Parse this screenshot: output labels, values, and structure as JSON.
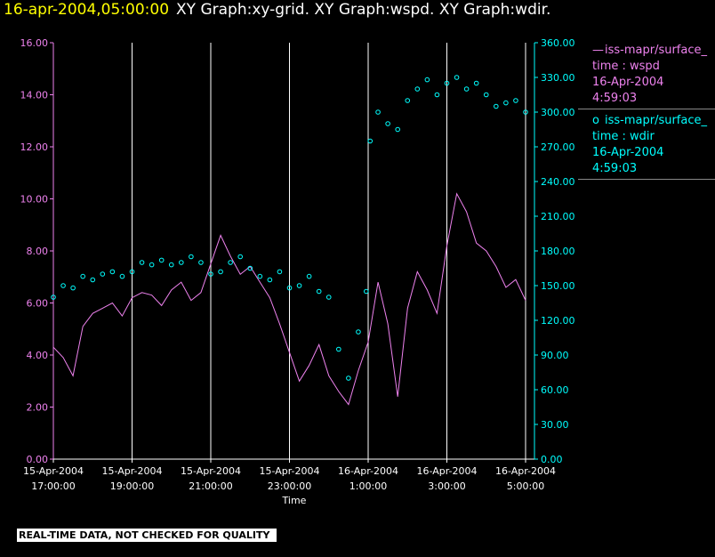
{
  "header": {
    "timestamp": "16-apr-2004,05:00:00",
    "graphs": "XY Graph:xy-grid.  XY Graph:wspd.  XY Graph:wdir."
  },
  "legend": [
    {
      "symbol": "—",
      "line1": "iss-mapr/surface_",
      "line2": "time : wspd",
      "line3": "16-Apr-2004",
      "line4": "4:59:03"
    },
    {
      "symbol": "o",
      "line1": "iss-mapr/surface_",
      "line2": "time : wdir",
      "line3": "16-Apr-2004",
      "line4": "4:59:03"
    }
  ],
  "notice": "REAL-TIME DATA, NOT CHECKED FOR QUALITY",
  "colors": {
    "wspd": "#ee82ee",
    "wdir": "#00ffff",
    "timestamp": "#ffff00",
    "grid": "#ffffff"
  },
  "chart_data": {
    "type": "line",
    "xlabel": "Time",
    "x_ticks": [
      {
        "hour": 0,
        "date": "15-Apr-2004",
        "time": "17:00:00"
      },
      {
        "hour": 2,
        "date": "15-Apr-2004",
        "time": "19:00:00"
      },
      {
        "hour": 4,
        "date": "15-Apr-2004",
        "time": "21:00:00"
      },
      {
        "hour": 6,
        "date": "15-Apr-2004",
        "time": "23:00:00"
      },
      {
        "hour": 8,
        "date": "16-Apr-2004",
        "time": "1:00:00"
      },
      {
        "hour": 10,
        "date": "16-Apr-2004",
        "time": "3:00:00"
      },
      {
        "hour": 12,
        "date": "16-Apr-2004",
        "time": "5:00:00"
      }
    ],
    "y_left": {
      "ylim": [
        0,
        16
      ],
      "ticks": [
        "0.00",
        "2.00",
        "4.00",
        "6.00",
        "8.00",
        "10.00",
        "12.00",
        "14.00",
        "16.00"
      ]
    },
    "y_right": {
      "ylim": [
        0,
        360
      ],
      "ticks": [
        "0.00",
        "30.00",
        "60.00",
        "90.00",
        "120.00",
        "150.00",
        "180.00",
        "210.00",
        "240.00",
        "270.00",
        "300.00",
        "330.00",
        "360.00"
      ]
    },
    "grid": "vertical at each x tick",
    "series": [
      {
        "style": "line",
        "axis": "left",
        "x": [
          0,
          0.25,
          0.5,
          0.75,
          1,
          1.25,
          1.5,
          1.75,
          2,
          2.25,
          2.5,
          2.75,
          3,
          3.25,
          3.5,
          3.75,
          4,
          4.25,
          4.5,
          4.75,
          5,
          5.25,
          5.5,
          5.75,
          6,
          6.25,
          6.5,
          6.75,
          7,
          7.25,
          7.5,
          7.75,
          8,
          8.25,
          8.5,
          8.75,
          9,
          9.25,
          9.5,
          9.75,
          10,
          10.25,
          10.5,
          10.75,
          11,
          11.25,
          11.5,
          11.75,
          12
        ],
        "values": [
          4.3,
          3.9,
          3.2,
          5.1,
          5.6,
          5.8,
          6.0,
          5.5,
          6.2,
          6.4,
          6.3,
          5.9,
          6.5,
          6.8,
          6.1,
          6.4,
          7.5,
          8.6,
          7.8,
          7.1,
          7.4,
          6.8,
          6.2,
          5.2,
          4.1,
          3.0,
          3.6,
          4.4,
          3.2,
          2.6,
          2.1,
          3.4,
          4.5,
          6.8,
          5.2,
          2.4,
          5.8,
          7.2,
          6.5,
          5.6,
          8.2,
          10.2,
          9.5,
          8.3,
          8.0,
          7.4,
          6.6,
          6.9,
          6.1
        ]
      },
      {
        "style": "scatter",
        "axis": "right",
        "x": [
          0,
          0.25,
          0.5,
          0.75,
          1,
          1.25,
          1.5,
          1.75,
          2,
          2.25,
          2.5,
          2.75,
          3,
          3.25,
          3.5,
          3.75,
          4,
          4.25,
          4.5,
          4.75,
          5,
          5.25,
          5.5,
          5.75,
          6,
          6.25,
          6.5,
          6.75,
          7,
          7.25,
          7.5,
          7.75,
          7.95,
          8.05,
          8.25,
          8.5,
          8.75,
          9,
          9.25,
          9.5,
          9.75,
          10,
          10.25,
          10.5,
          10.75,
          11,
          11.25,
          11.5,
          11.75,
          12
        ],
        "values": [
          140,
          150,
          148,
          158,
          155,
          160,
          162,
          158,
          162,
          170,
          168,
          172,
          168,
          170,
          175,
          170,
          160,
          162,
          170,
          175,
          165,
          158,
          155,
          162,
          148,
          150,
          158,
          145,
          140,
          95,
          70,
          110,
          145,
          275,
          300,
          290,
          285,
          310,
          320,
          328,
          315,
          325,
          330,
          320,
          325,
          315,
          305,
          308,
          310,
          300
        ]
      }
    ]
  }
}
